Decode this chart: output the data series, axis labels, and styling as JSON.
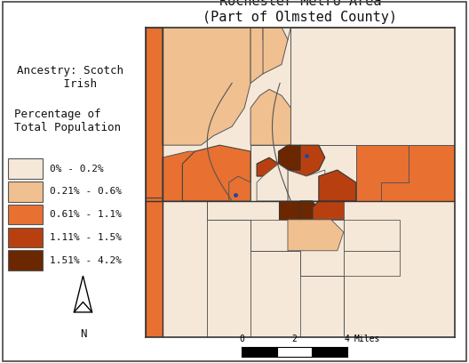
{
  "title_line1": "Rochester Metro Area",
  "title_line2": "(Part of Olmsted County)",
  "legend_entries": [
    {
      "label": "0% - 0.2%",
      "color": "#f5e8d8"
    },
    {
      "label": "0.21% - 0.6%",
      "color": "#f0c090"
    },
    {
      "label": "0.61% - 1.1%",
      "color": "#e87030"
    },
    {
      "label": "1.11% - 1.5%",
      "color": "#b84010"
    },
    {
      "label": "1.51% - 4.2%",
      "color": "#6b2800"
    }
  ],
  "background_color": "#ffffff",
  "title_fontsize": 11,
  "legend_fontsize": 8,
  "text_fontsize": 9
}
